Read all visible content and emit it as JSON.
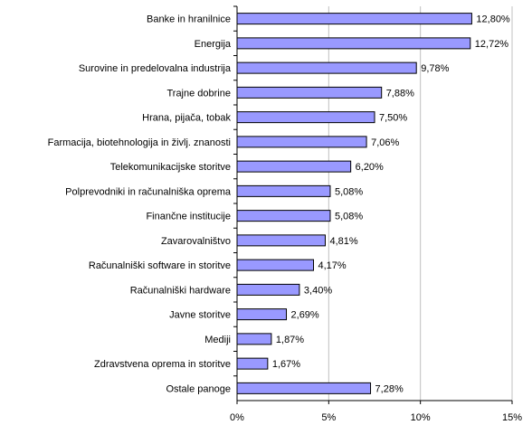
{
  "chart_data": {
    "type": "bar",
    "orientation": "horizontal",
    "categories": [
      "Banke in hranilnice",
      "Energija",
      "Surovine in predelovalna industrija",
      "Trajne dobrine",
      "Hrana, pijača, tobak",
      "Farmacija, biotehnologija in življ. znanosti",
      "Telekomunikacijske storitve",
      "Polprevodniki in računalniška oprema",
      "Finančne institucije",
      "Zavarovalništvo",
      "Računalniški software in storitve",
      "Računalniški hardware",
      "Javne storitve",
      "Mediji",
      "Zdravstvena oprema in storitve",
      "Ostale panoge"
    ],
    "values": [
      12.8,
      12.72,
      9.78,
      7.88,
      7.5,
      7.06,
      6.2,
      5.08,
      5.08,
      4.81,
      4.17,
      3.4,
      2.69,
      1.87,
      1.67,
      7.28
    ],
    "value_labels": [
      "12,80%",
      "12,72%",
      "9,78%",
      "7,88%",
      "7,50%",
      "7,06%",
      "6,20%",
      "5,08%",
      "5,08%",
      "4,81%",
      "4,17%",
      "3,40%",
      "2,69%",
      "1,87%",
      "1,67%",
      "7,28%"
    ],
    "color": "#9999ff",
    "xlim": [
      0,
      15
    ],
    "xticks": [
      {
        "value": 0,
        "label": "0%"
      },
      {
        "value": 5,
        "label": "5%"
      },
      {
        "value": 10,
        "label": "10%"
      },
      {
        "value": 15,
        "label": "15%"
      }
    ],
    "grid": true
  }
}
